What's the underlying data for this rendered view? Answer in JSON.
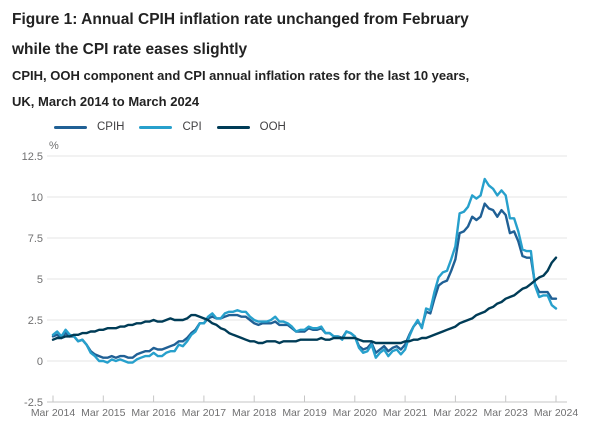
{
  "figure": {
    "title_lines": [
      "Figure 1: Annual CPIH inflation rate unchanged from February",
      "while the CPI rate eases slightly"
    ],
    "subtitle_lines": [
      "CPIH, OOH component and CPI annual inflation rates for the last 10 years,",
      "UK, March 2014 to March 2024"
    ]
  },
  "palette": {
    "grid": "#e4e4e4",
    "axis": "#c6c6c6",
    "tick_text": "#707071",
    "heading_text": "#222222",
    "legend_text": "#414042"
  },
  "chart_data": {
    "type": "line",
    "title": "Figure 1: Annual CPIH inflation rate unchanged from February while the CPI rate eases slightly",
    "subtitle": "CPIH, OOH component and CPI annual inflation rates for the last 10 years, UK, March 2014 to March 2024",
    "unit_label": "%",
    "grid": "horizontal",
    "legend_position": "top-left",
    "x_start": "Mar 2014",
    "x_end": "Mar 2024",
    "x_frequency": "monthly",
    "x_tick_labels": [
      "Mar 2014",
      "Mar 2015",
      "Mar 2016",
      "Mar 2017",
      "Mar 2018",
      "Mar 2019",
      "Mar 2020",
      "Mar 2021",
      "Mar 2022",
      "Mar 2023",
      "Mar 2024"
    ],
    "y_ticks": [
      12.5,
      10,
      7.5,
      5,
      2.5,
      0,
      -2.5
    ],
    "ylim": [
      -2.5,
      12.5
    ],
    "series": [
      {
        "name": "CPIH",
        "color": "#206095",
        "values": [
          1.5,
          1.6,
          1.4,
          1.7,
          1.5,
          1.5,
          1.2,
          1.3,
          1.0,
          0.6,
          0.4,
          0.3,
          0.2,
          0.2,
          0.3,
          0.2,
          0.3,
          0.3,
          0.2,
          0.2,
          0.4,
          0.5,
          0.6,
          0.6,
          0.8,
          0.7,
          0.7,
          0.8,
          0.9,
          1.0,
          1.2,
          1.2,
          1.4,
          1.7,
          1.9,
          2.3,
          2.3,
          2.6,
          2.7,
          2.6,
          2.6,
          2.7,
          2.8,
          2.8,
          2.8,
          2.7,
          2.7,
          2.5,
          2.3,
          2.2,
          2.3,
          2.3,
          2.3,
          2.4,
          2.2,
          2.2,
          2.2,
          2.0,
          1.8,
          1.8,
          1.8,
          2.0,
          1.9,
          1.9,
          2.0,
          1.7,
          1.7,
          1.5,
          1.5,
          1.4,
          1.8,
          1.7,
          1.5,
          0.9,
          0.7,
          0.8,
          1.1,
          0.5,
          0.7,
          0.9,
          0.6,
          0.8,
          0.9,
          0.7,
          1.0,
          1.6,
          2.1,
          2.4,
          2.1,
          3.0,
          2.9,
          3.8,
          4.6,
          4.8,
          4.9,
          5.5,
          6.2,
          7.8,
          7.9,
          8.2,
          8.8,
          8.6,
          8.8,
          9.6,
          9.3,
          9.2,
          8.8,
          9.2,
          8.9,
          7.8,
          7.9,
          7.3,
          6.4,
          6.3,
          6.3,
          4.7,
          4.2,
          4.2,
          4.2,
          3.8,
          3.8
        ]
      },
      {
        "name": "CPI",
        "color": "#27a0cc",
        "values": [
          1.6,
          1.8,
          1.5,
          1.9,
          1.6,
          1.5,
          1.2,
          1.3,
          1.0,
          0.5,
          0.3,
          0.0,
          0.0,
          -0.1,
          0.1,
          0.0,
          0.1,
          0.0,
          -0.1,
          -0.1,
          0.1,
          0.2,
          0.3,
          0.3,
          0.5,
          0.3,
          0.3,
          0.5,
          0.6,
          0.6,
          1.0,
          0.9,
          1.2,
          1.6,
          1.8,
          2.3,
          2.3,
          2.7,
          2.9,
          2.6,
          2.6,
          2.9,
          3.0,
          3.0,
          3.1,
          3.0,
          3.0,
          2.7,
          2.5,
          2.4,
          2.4,
          2.4,
          2.5,
          2.7,
          2.4,
          2.4,
          2.3,
          2.1,
          1.8,
          1.9,
          1.9,
          2.1,
          2.0,
          2.0,
          2.1,
          1.7,
          1.7,
          1.5,
          1.5,
          1.3,
          1.8,
          1.7,
          1.5,
          0.8,
          0.5,
          0.6,
          1.0,
          0.2,
          0.5,
          0.7,
          0.3,
          0.6,
          0.7,
          0.4,
          0.7,
          1.5,
          2.1,
          2.5,
          2.0,
          3.2,
          3.1,
          4.2,
          5.1,
          5.4,
          5.5,
          6.2,
          7.0,
          9.0,
          9.1,
          9.4,
          10.1,
          9.9,
          10.1,
          11.1,
          10.7,
          10.5,
          10.1,
          10.4,
          10.1,
          8.7,
          8.7,
          7.9,
          6.8,
          6.7,
          6.7,
          4.6,
          3.9,
          4.0,
          4.0,
          3.4,
          3.2
        ]
      },
      {
        "name": "OOH",
        "color": "#003c57",
        "values": [
          1.3,
          1.4,
          1.4,
          1.5,
          1.5,
          1.6,
          1.6,
          1.7,
          1.7,
          1.8,
          1.8,
          1.9,
          1.9,
          2.0,
          2.0,
          2.0,
          2.1,
          2.1,
          2.2,
          2.2,
          2.3,
          2.3,
          2.4,
          2.4,
          2.5,
          2.4,
          2.4,
          2.5,
          2.6,
          2.5,
          2.5,
          2.5,
          2.6,
          2.8,
          2.8,
          2.7,
          2.6,
          2.5,
          2.3,
          2.2,
          2.0,
          1.9,
          1.7,
          1.6,
          1.5,
          1.4,
          1.3,
          1.2,
          1.2,
          1.1,
          1.1,
          1.2,
          1.2,
          1.2,
          1.1,
          1.2,
          1.2,
          1.2,
          1.2,
          1.3,
          1.3,
          1.3,
          1.3,
          1.3,
          1.4,
          1.3,
          1.3,
          1.4,
          1.4,
          1.4,
          1.4,
          1.4,
          1.4,
          1.3,
          1.2,
          1.2,
          1.2,
          1.1,
          1.1,
          1.1,
          1.1,
          1.1,
          1.1,
          1.1,
          1.2,
          1.2,
          1.3,
          1.3,
          1.4,
          1.4,
          1.5,
          1.6,
          1.7,
          1.8,
          1.9,
          2.0,
          2.1,
          2.3,
          2.4,
          2.5,
          2.6,
          2.8,
          2.9,
          3.0,
          3.2,
          3.3,
          3.5,
          3.6,
          3.8,
          3.9,
          4.0,
          4.2,
          4.4,
          4.5,
          4.7,
          4.9,
          5.1,
          5.2,
          5.5,
          6.0,
          6.3
        ]
      }
    ]
  }
}
